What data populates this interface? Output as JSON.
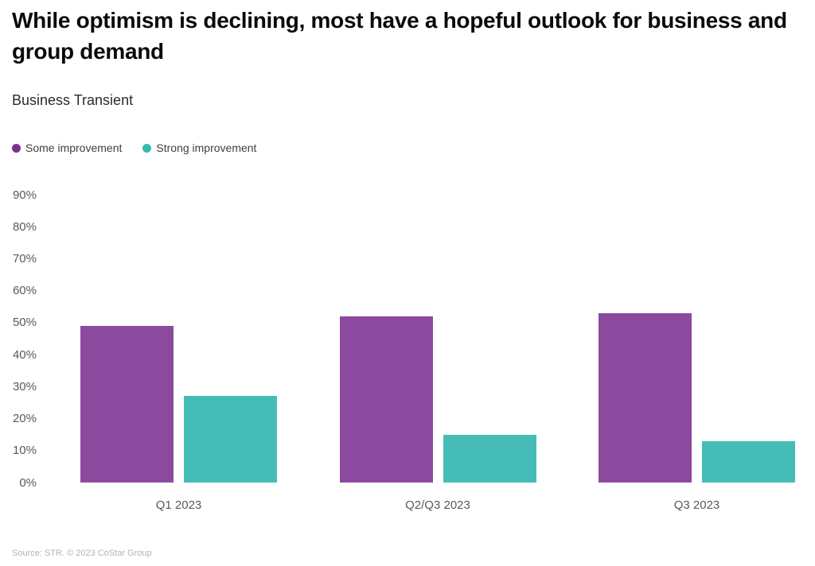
{
  "header": {
    "title": "While optimism is declining, most have a hopeful outlook for business and group demand",
    "subtitle": "Business Transient"
  },
  "legend": {
    "items": [
      {
        "label": "Some improvement",
        "dot_color": "#7c2f8e"
      },
      {
        "label": "Strong improvement",
        "dot_color": "#35b8b0"
      }
    ]
  },
  "chart_data": {
    "type": "bar",
    "categories": [
      "Q1 2023",
      "Q2/Q3 2023",
      "Q3 2023"
    ],
    "series": [
      {
        "name": "Some improvement",
        "color": "#8b4a9e",
        "values": [
          49,
          52,
          53
        ]
      },
      {
        "name": "Strong improvement",
        "color": "#45bdb6",
        "values": [
          27,
          15,
          13
        ]
      }
    ],
    "title": "Business Transient",
    "xlabel": "",
    "ylabel": "",
    "ylim": [
      0,
      90
    ],
    "yticks": [
      0,
      10,
      20,
      30,
      40,
      50,
      60,
      70,
      80,
      90
    ],
    "ytick_suffix": "%",
    "grid": false,
    "legend_position": "top-left"
  },
  "footer": {
    "source": "Source: STR. © 2023 CoStar Group"
  }
}
